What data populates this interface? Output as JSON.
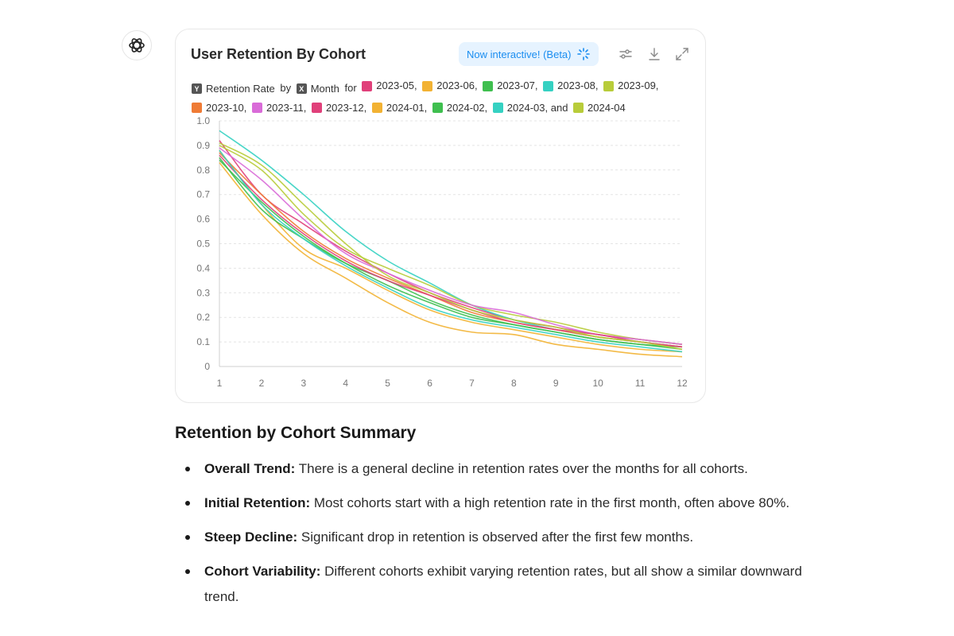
{
  "card": {
    "title": "User Retention By Cohort",
    "badge_label": "Now interactive! (Beta)",
    "icons": [
      "sparkle-icon",
      "filter-icon",
      "download-icon",
      "expand-icon"
    ],
    "accent_color": "#1a8df0"
  },
  "legend": {
    "y_badge": "Y",
    "y_label": "Retention Rate",
    "by_text": "by",
    "x_badge": "X",
    "x_label": "Month",
    "for_text": "for",
    "items": [
      {
        "label": "2023-05,",
        "color": "#e0407a"
      },
      {
        "label": "2023-06,",
        "color": "#f2b233"
      },
      {
        "label": "2023-07,",
        "color": "#3fbf4f"
      },
      {
        "label": "2023-08,",
        "color": "#35d1c2"
      },
      {
        "label": "2023-09,",
        "color": "#b8cc3a"
      },
      {
        "label": "2023-10,",
        "color": "#ef7b35"
      },
      {
        "label": "2023-11,",
        "color": "#d96bd8"
      },
      {
        "label": "2023-12,",
        "color": "#e0407a"
      },
      {
        "label": "2024-01,",
        "color": "#f2b233"
      },
      {
        "label": "2024-02,",
        "color": "#3fbf4f"
      },
      {
        "label": "2024-03, and",
        "color": "#35d1c2"
      },
      {
        "label": "2024-04",
        "color": "#b8cc3a"
      }
    ]
  },
  "chart_data": {
    "type": "line",
    "x": [
      1,
      2,
      3,
      4,
      5,
      6,
      7,
      8,
      9,
      10,
      11,
      12
    ],
    "ylim": [
      0,
      1.0
    ],
    "y_ticks": [
      "0",
      "0.1",
      "0.2",
      "0.3",
      "0.4",
      "0.5",
      "0.6",
      "0.7",
      "0.8",
      "0.9",
      "1.0"
    ],
    "x_ticks": [
      "1",
      "2",
      "3",
      "4",
      "5",
      "6",
      "7",
      "8",
      "9",
      "10",
      "11",
      "12"
    ],
    "grid": true,
    "series": [
      {
        "name": "2023-05",
        "color": "#e0407a",
        "values": [
          0.92,
          0.7,
          0.58,
          0.47,
          0.38,
          0.3,
          0.24,
          0.19,
          0.16,
          0.13,
          0.11,
          0.09
        ]
      },
      {
        "name": "2023-06",
        "color": "#f2b233",
        "values": [
          0.88,
          0.66,
          0.48,
          0.4,
          0.31,
          0.23,
          0.18,
          0.15,
          0.12,
          0.09,
          0.07,
          0.06
        ]
      },
      {
        "name": "2023-07",
        "color": "#3fbf4f",
        "values": [
          0.85,
          0.64,
          0.52,
          0.42,
          0.35,
          0.27,
          0.21,
          0.17,
          0.14,
          0.11,
          0.09,
          0.08
        ]
      },
      {
        "name": "2023-08",
        "color": "#35d1c2",
        "values": [
          0.96,
          0.84,
          0.7,
          0.55,
          0.43,
          0.34,
          0.25,
          0.19,
          0.15,
          0.12,
          0.1,
          0.08
        ]
      },
      {
        "name": "2023-09",
        "color": "#b8cc3a",
        "values": [
          0.9,
          0.8,
          0.62,
          0.48,
          0.4,
          0.33,
          0.25,
          0.21,
          0.18,
          0.14,
          0.11,
          0.09
        ]
      },
      {
        "name": "2023-10",
        "color": "#ef7b35",
        "values": [
          0.87,
          0.7,
          0.55,
          0.44,
          0.36,
          0.29,
          0.22,
          0.18,
          0.15,
          0.12,
          0.1,
          0.08
        ]
      },
      {
        "name": "2023-11",
        "color": "#d96bd8",
        "values": [
          0.89,
          0.76,
          0.6,
          0.46,
          0.38,
          0.31,
          0.25,
          0.22,
          0.17,
          0.13,
          0.11,
          0.09
        ]
      },
      {
        "name": "2023-12",
        "color": "#e0407a",
        "values": [
          0.86,
          0.68,
          0.54,
          0.43,
          0.35,
          0.29,
          0.23,
          0.18,
          0.15,
          0.13,
          0.1,
          0.08
        ]
      },
      {
        "name": "2024-01",
        "color": "#f2b233",
        "values": [
          0.83,
          0.62,
          0.46,
          0.36,
          0.26,
          0.18,
          0.14,
          0.13,
          0.09,
          0.07,
          0.05,
          0.04
        ]
      },
      {
        "name": "2024-02",
        "color": "#3fbf4f",
        "values": [
          0.84,
          0.67,
          0.53,
          0.42,
          0.33,
          0.26,
          0.2,
          0.17,
          0.14,
          0.11,
          0.09,
          0.07
        ]
      },
      {
        "name": "2024-03",
        "color": "#35d1c2",
        "values": [
          0.88,
          0.66,
          0.52,
          0.41,
          0.32,
          0.24,
          0.19,
          0.16,
          0.13,
          0.1,
          0.08,
          0.06
        ]
      },
      {
        "name": "2024-04",
        "color": "#b8cc3a",
        "values": [
          0.91,
          0.82,
          0.66,
          0.5,
          0.37,
          0.3,
          0.23,
          0.19,
          0.16,
          0.12,
          0.1,
          0.07
        ]
      }
    ]
  },
  "summary": {
    "title": "Retention by Cohort Summary",
    "bullets": [
      {
        "label": "Overall Trend:",
        "text": " There is a general decline in retention rates over the months for all cohorts."
      },
      {
        "label": "Initial Retention:",
        "text": " Most cohorts start with a high retention rate in the first month, often above 80%."
      },
      {
        "label": "Steep Decline:",
        "text": " Significant drop in retention is observed after the first few months."
      },
      {
        "label": "Cohort Variability:",
        "text": " Different cohorts exhibit varying retention rates, but all show a similar downward trend."
      }
    ]
  }
}
